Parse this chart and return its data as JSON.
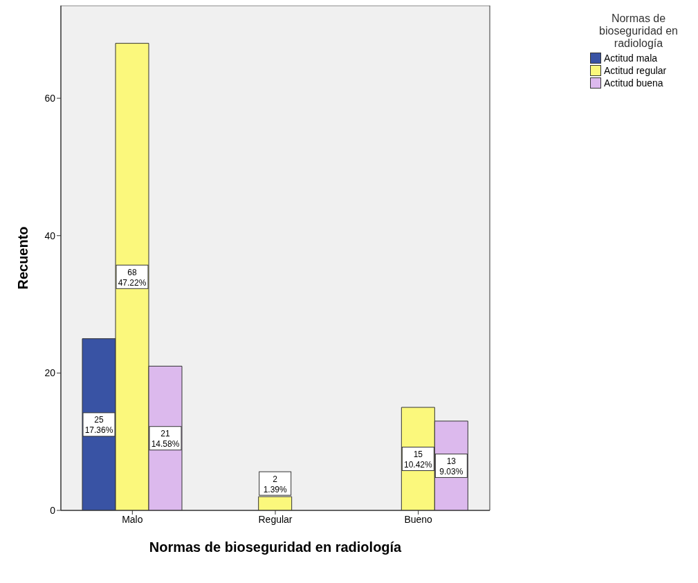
{
  "chart_data": {
    "type": "bar",
    "xlabel": "Normas de bioseguridad en radiología",
    "ylabel": "Recuento",
    "legend_title": "Normas de bioseguridad en radiología",
    "categories": [
      "Malo",
      "Regular",
      "Bueno"
    ],
    "series": [
      {
        "name": "Actitud mala",
        "color": "#3953a4",
        "values": [
          25,
          null,
          null
        ],
        "value_labels": [
          "25\n17.36%",
          null,
          null
        ]
      },
      {
        "name": "Actitud regular",
        "color": "#fbf87c",
        "values": [
          68,
          2,
          15
        ],
        "value_labels": [
          "68\n47.22%",
          "2\n1.39%",
          "15\n10.42%"
        ]
      },
      {
        "name": "Actitud buena",
        "color": "#dcb9ed",
        "values": [
          21,
          null,
          13
        ],
        "value_labels": [
          "21\n14.58%",
          null,
          "13\n9.03%"
        ]
      }
    ],
    "ylim": [
      0,
      73.5
    ],
    "yticks": [
      0,
      20,
      40,
      60
    ],
    "legend": "top right"
  }
}
